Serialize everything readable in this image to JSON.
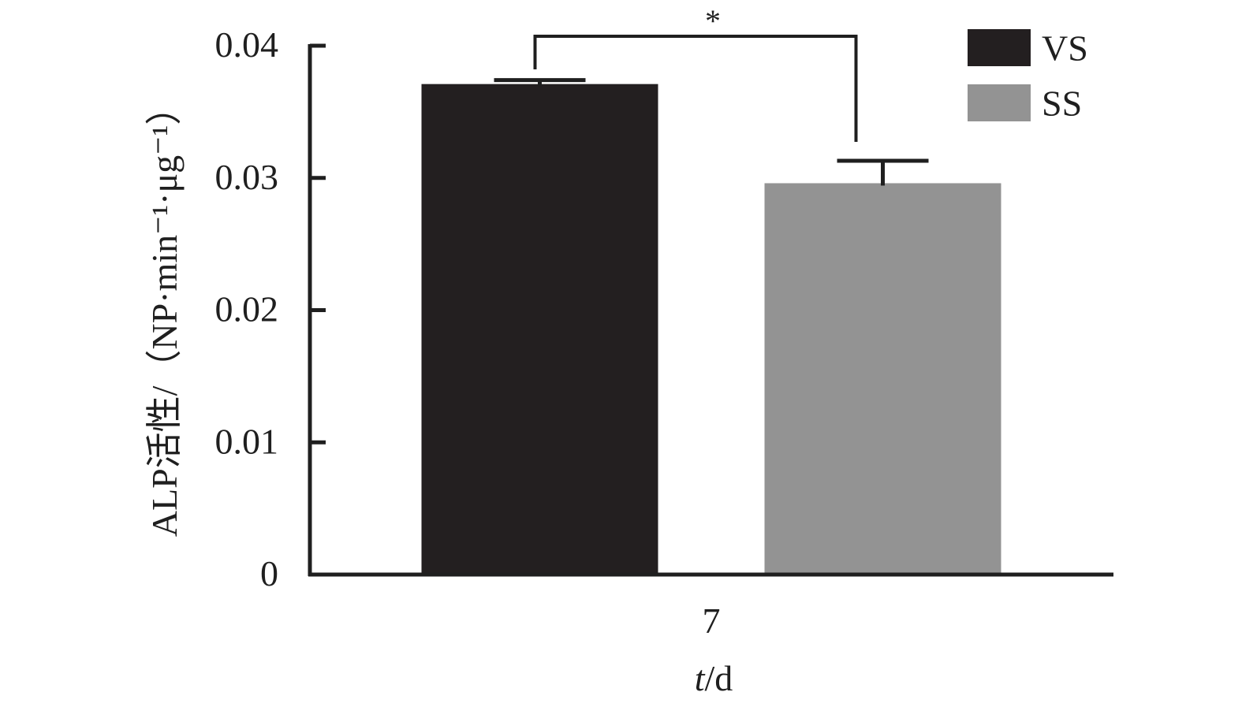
{
  "chart_data": {
    "type": "bar",
    "categories": [
      "7"
    ],
    "series": [
      {
        "name": "VS",
        "values": [
          0.0371
        ],
        "error": [
          0.0003
        ],
        "color": "#231f20"
      },
      {
        "name": "SS",
        "values": [
          0.0296
        ],
        "error": [
          0.0017
        ],
        "color": "#939393"
      }
    ],
    "xlabel_italic": "t",
    "xlabel_rest": "/d",
    "ylabel": "ALP活性/（NP·min⁻¹·μg⁻¹）",
    "ylim": [
      0,
      0.04
    ],
    "yticks": [
      {
        "value": 0,
        "label": "0"
      },
      {
        "value": 0.01,
        "label": "0.01"
      },
      {
        "value": 0.02,
        "label": "0.02"
      },
      {
        "value": 0.03,
        "label": "0.03"
      },
      {
        "value": 0.04,
        "label": "0.04"
      }
    ],
    "significance": {
      "label": "*",
      "between": [
        "VS",
        "SS"
      ]
    },
    "legend_position": "top-right",
    "grid": false
  }
}
